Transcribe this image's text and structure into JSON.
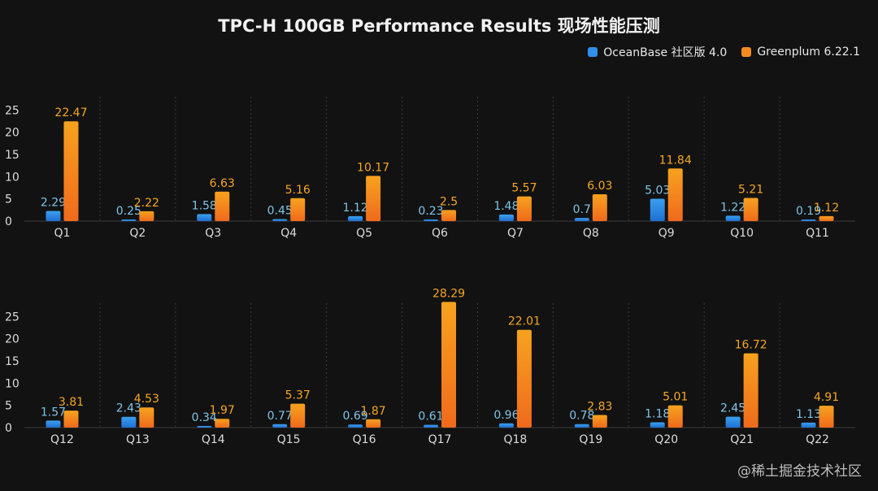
{
  "title": "TPC-H 100GB Performance Results 现场性能压测",
  "legend": [
    {
      "name": "OceanBase 社区版 4.0",
      "color": "#2f8ee8"
    },
    {
      "name": "Greenplum 6.22.1",
      "color": "#f38b21"
    }
  ],
  "watermark": "@稀土掘金技术社区",
  "chart_data": {
    "type": "bar",
    "title": "TPC-H 100GB Performance Results 现场性能压测",
    "ylim": [
      0,
      28
    ],
    "yticks": [
      0,
      5,
      10,
      15,
      20,
      25
    ],
    "grid": true,
    "legend_position": "top-right",
    "series_names": [
      "OceanBase 社区版 4.0",
      "Greenplum 6.22.1"
    ],
    "series_colors": [
      "#2f8ee8",
      "#f38b21"
    ],
    "label_colors": [
      "#7ec4e8",
      "#f5a623"
    ],
    "panels": [
      {
        "categories": [
          "Q1",
          "Q2",
          "Q3",
          "Q4",
          "Q5",
          "Q6",
          "Q7",
          "Q8",
          "Q9",
          "Q10",
          "Q11"
        ],
        "series": [
          {
            "name": "OceanBase 社区版 4.0",
            "values": [
              2.29,
              0.25,
              1.58,
              0.45,
              1.12,
              0.23,
              1.48,
              0.7,
              5.03,
              1.22,
              0.19
            ]
          },
          {
            "name": "Greenplum 6.22.1",
            "values": [
              22.47,
              2.22,
              6.63,
              5.16,
              10.17,
              2.5,
              5.57,
              6.03,
              11.84,
              5.21,
              1.12
            ]
          }
        ]
      },
      {
        "categories": [
          "Q12",
          "Q13",
          "Q14",
          "Q15",
          "Q16",
          "Q17",
          "Q18",
          "Q19",
          "Q20",
          "Q21",
          "Q22"
        ],
        "series": [
          {
            "name": "OceanBase 社区版 4.0",
            "values": [
              1.57,
              2.43,
              0.34,
              0.77,
              0.69,
              0.61,
              0.96,
              0.78,
              1.18,
              2.45,
              1.13
            ]
          },
          {
            "name": "Greenplum 6.22.1",
            "values": [
              3.81,
              4.53,
              1.97,
              5.37,
              1.87,
              28.29,
              22.01,
              2.83,
              5.01,
              16.72,
              4.91
            ]
          }
        ]
      }
    ]
  }
}
